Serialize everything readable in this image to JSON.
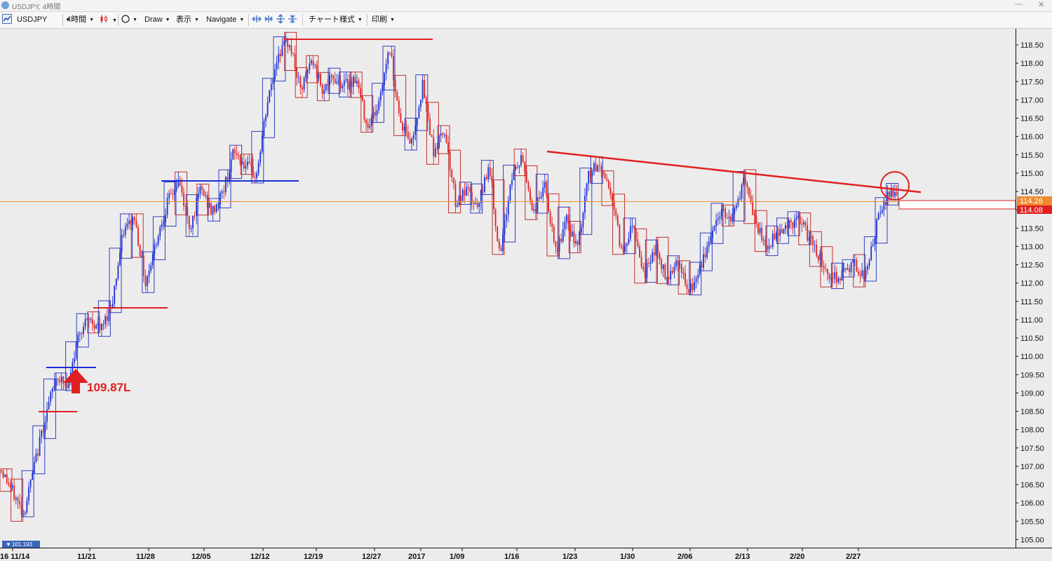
{
  "window": {
    "title": "USDJPY, 4時間",
    "minimize": "—",
    "close": "✕"
  },
  "toolbar": {
    "symbol": "USDJPY",
    "timeframe": "4時間",
    "shape_icon": "circle-icon",
    "draw": "Draw",
    "view": "表示",
    "navigate": "Navigate",
    "chart_style": "チャート様式",
    "print": "印刷"
  },
  "chart_data": {
    "type": "candlestick",
    "symbol": "USDJPY",
    "timeframe": "4時間",
    "ylim": [
      104.8,
      119.5
    ],
    "y_ticks": [
      "105.00",
      "105.50",
      "106.00",
      "106.50",
      "107.00",
      "107.50",
      "108.00",
      "108.50",
      "109.00",
      "109.50",
      "110.00",
      "110.50",
      "111.00",
      "111.50",
      "112.00",
      "112.50",
      "113.00",
      "113.50",
      "114.00",
      "114.50",
      "115.00",
      "115.50",
      "116.00",
      "116.50",
      "117.00",
      "117.50",
      "118.00",
      "118.50"
    ],
    "x_ticks": [
      "16 11/14",
      "11/21",
      "11/28",
      "12/05",
      "12/12",
      "12/19",
      "12/27",
      "2017",
      "1/09",
      "1/16",
      "1/23",
      "1/30",
      "2/06",
      "2/13",
      "2/20",
      "2/27"
    ],
    "price_path": [
      [
        0,
        106.9
      ],
      [
        2,
        105.7
      ],
      [
        4,
        108.4
      ],
      [
        5,
        109.5
      ],
      [
        6,
        109.1
      ],
      [
        7,
        110.7
      ],
      [
        8,
        111.0
      ],
      [
        9,
        110.7
      ],
      [
        10,
        111.5
      ],
      [
        11,
        113.4
      ],
      [
        12,
        113.8
      ],
      [
        13,
        112.0
      ],
      [
        14,
        113.2
      ],
      [
        15,
        114.2
      ],
      [
        16,
        114.8
      ],
      [
        17,
        113.5
      ],
      [
        18,
        114.6
      ],
      [
        19,
        113.9
      ],
      [
        20,
        114.5
      ],
      [
        21,
        115.6
      ],
      [
        22,
        115.2
      ],
      [
        23,
        114.9
      ],
      [
        24,
        116.9
      ],
      [
        25,
        118.3
      ],
      [
        26,
        118.6
      ],
      [
        27,
        117.2
      ],
      [
        28,
        118.1
      ],
      [
        29,
        117.3
      ],
      [
        30,
        117.6
      ],
      [
        31,
        117.4
      ],
      [
        32,
        117.6
      ],
      [
        33,
        116.3
      ],
      [
        34,
        116.8
      ],
      [
        35,
        118.5
      ],
      [
        36,
        116.4
      ],
      [
        37,
        115.8
      ],
      [
        38,
        117.4
      ],
      [
        39,
        115.6
      ],
      [
        40,
        116.2
      ],
      [
        41,
        114.2
      ],
      [
        42,
        114.5
      ],
      [
        43,
        114.0
      ],
      [
        44,
        115.3
      ],
      [
        45,
        112.6
      ],
      [
        46,
        114.9
      ],
      [
        47,
        115.4
      ],
      [
        48,
        113.9
      ],
      [
        49,
        114.7
      ],
      [
        50,
        112.8
      ],
      [
        51,
        113.7
      ],
      [
        52,
        112.9
      ],
      [
        53,
        115.0
      ],
      [
        54,
        115.2
      ],
      [
        55,
        114.5
      ],
      [
        56,
        112.8
      ],
      [
        57,
        113.7
      ],
      [
        58,
        112.2
      ],
      [
        59,
        113.0
      ],
      [
        60,
        112.1
      ],
      [
        61,
        112.7
      ],
      [
        62,
        111.7
      ],
      [
        63,
        112.3
      ],
      [
        64,
        113.3
      ],
      [
        65,
        114.0
      ],
      [
        66,
        113.8
      ],
      [
        67,
        114.8
      ],
      [
        68,
        113.7
      ],
      [
        69,
        112.9
      ],
      [
        70,
        113.4
      ],
      [
        71,
        113.6
      ],
      [
        72,
        113.7
      ],
      [
        73,
        113.2
      ],
      [
        74,
        112.6
      ],
      [
        75,
        112.1
      ],
      [
        76,
        112.3
      ],
      [
        77,
        112.5
      ],
      [
        78,
        112.2
      ],
      [
        79,
        113.6
      ],
      [
        80,
        114.4
      ],
      [
        81,
        114.6
      ],
      [
        82,
        114.26
      ]
    ],
    "current_bid": "114.26",
    "current_ask": "114.08",
    "low_marker": "101.193",
    "annotation": "109.87L",
    "colors": {
      "bull": "#1c2fd6",
      "bear": "#e02020",
      "trend": "#e02020",
      "price_line": "#f08a2c",
      "bg": "#ececec"
    }
  }
}
